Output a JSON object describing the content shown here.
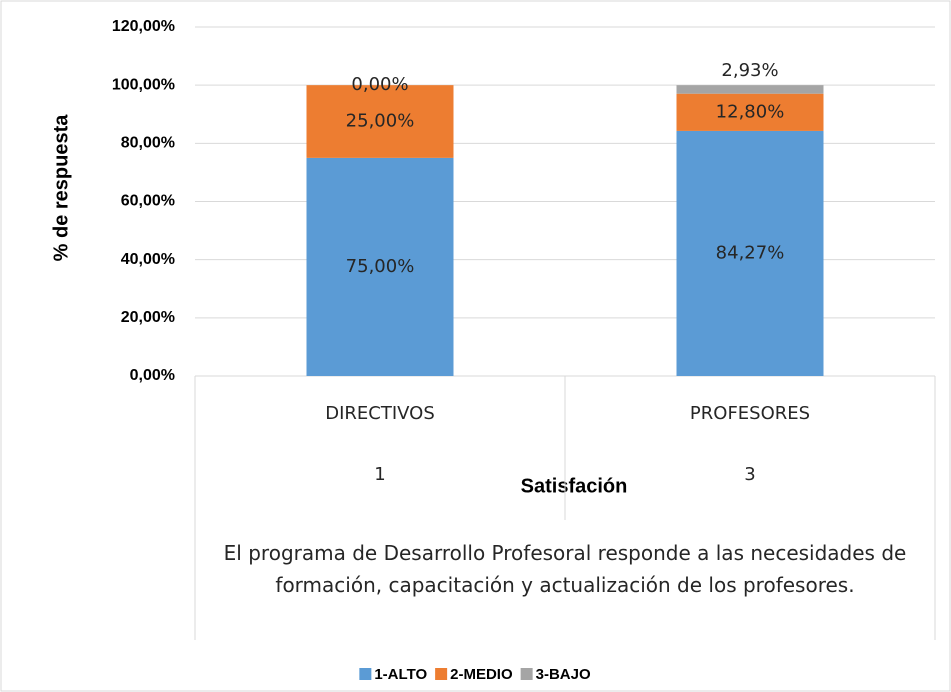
{
  "chart_data": {
    "type": "stacked_bar",
    "categories": [
      "DIRECTIVOS",
      "PROFESORES"
    ],
    "category_groups": [
      "1",
      "3"
    ],
    "category_group_label": "El programa de Desarrollo Profesoral responde a las necesidades de formación, capacitación y actualización de los profesores.",
    "x_label": "Satisfación",
    "y_label": "% de respuesta",
    "series": [
      {
        "name": "1-ALTO",
        "color": "#5b9bd5",
        "values": [
          75,
          84.27
        ],
        "value_labels": [
          "75,00%",
          "84,27%"
        ]
      },
      {
        "name": "2-MEDIO",
        "color": "#ed7d31",
        "values": [
          25,
          12.8
        ],
        "value_labels": [
          "25,00%",
          "12,80%"
        ]
      },
      {
        "name": "3-BAJO",
        "color": "#a5a5a5",
        "values": [
          0,
          2.93
        ],
        "value_labels": [
          "0,00%",
          "2,93%"
        ]
      }
    ],
    "ylim": [
      0,
      120
    ],
    "yticks": [
      {
        "value": 0,
        "label": "0,00%"
      },
      {
        "value": 20,
        "label": "20,00%"
      },
      {
        "value": 40,
        "label": "40,00%"
      },
      {
        "value": 60,
        "label": "60,00%"
      },
      {
        "value": 80,
        "label": "80,00%"
      },
      {
        "value": 100,
        "label": "100,00%"
      },
      {
        "value": 120,
        "label": "120,00%"
      }
    ],
    "grid": true,
    "legend": "bottom"
  }
}
